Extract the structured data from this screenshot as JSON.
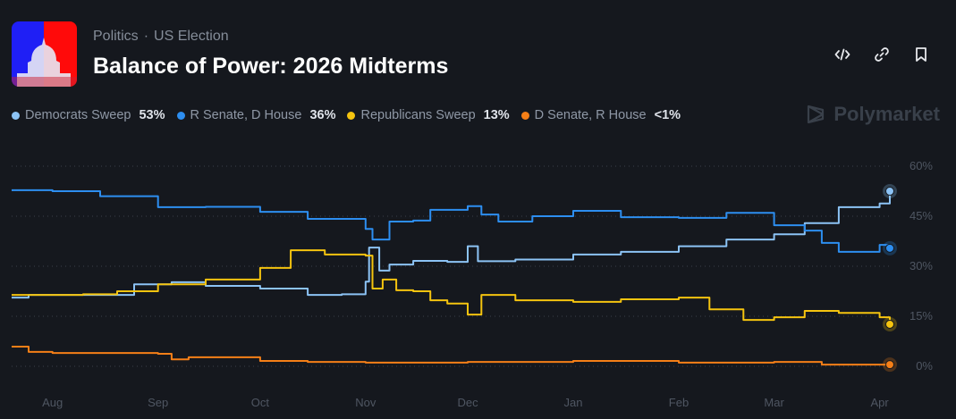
{
  "header": {
    "category": "Politics",
    "subcategory": "US Election",
    "separator": "·",
    "title": "Balance of Power: 2026 Midterms",
    "actions": [
      {
        "icon": "code-embed-icon"
      },
      {
        "icon": "link-icon"
      },
      {
        "icon": "bookmark-icon"
      }
    ]
  },
  "brand": {
    "name": "Polymarket"
  },
  "legend": [
    {
      "label": "Democrats Sweep",
      "value": "53%",
      "color": "#8cc3f5"
    },
    {
      "label": "R Senate, D House",
      "value": "36%",
      "color": "#2d8ef0"
    },
    {
      "label": "Republicans Sweep",
      "value": "13%",
      "color": "#f5c40f"
    },
    {
      "label": "D Senate, R House",
      "value": "<1%",
      "color": "#f57f17"
    }
  ],
  "chart_data": {
    "type": "line",
    "ylim": [
      0,
      60
    ],
    "y_ticks": [
      "60%",
      "45%",
      "30%",
      "15%",
      "0%"
    ],
    "y_tick_values": [
      60,
      45,
      30,
      15,
      0
    ],
    "x_ticks": [
      "Aug",
      "Sep",
      "Oct",
      "Nov",
      "Dec",
      "Jan",
      "Feb",
      "Mar",
      "Apr"
    ],
    "x_tick_dates": [
      "2025-08-01",
      "2025-09-01",
      "2025-10-01",
      "2025-11-01",
      "2025-12-01",
      "2026-01-01",
      "2026-02-01",
      "2026-03-01",
      "2026-04-01"
    ],
    "xlim": [
      "2025-07-20",
      "2026-04-04"
    ],
    "grid": "horizontal dotted",
    "legend_position": "top",
    "series": [
      {
        "name": "Democrats Sweep",
        "color": "#8cc3f5",
        "points": [
          [
            "2025-07-20",
            20.6
          ],
          [
            "2025-07-25",
            21.4
          ],
          [
            "2025-08-10",
            21.4
          ],
          [
            "2025-08-25",
            24.6
          ],
          [
            "2025-09-05",
            25.2
          ],
          [
            "2025-09-15",
            24.1
          ],
          [
            "2025-10-01",
            23.3
          ],
          [
            "2025-10-15",
            21.4
          ],
          [
            "2025-10-25",
            21.6
          ],
          [
            "2025-11-01",
            25.4
          ],
          [
            "2025-11-02",
            35.6
          ],
          [
            "2025-11-05",
            28.7
          ],
          [
            "2025-11-08",
            30.5
          ],
          [
            "2025-11-15",
            31.6
          ],
          [
            "2025-11-25",
            31.3
          ],
          [
            "2025-12-01",
            36.0
          ],
          [
            "2025-12-04",
            31.5
          ],
          [
            "2025-12-15",
            32.0
          ],
          [
            "2026-01-01",
            33.5
          ],
          [
            "2026-01-15",
            34.3
          ],
          [
            "2026-02-01",
            36.0
          ],
          [
            "2026-02-15",
            38.0
          ],
          [
            "2026-03-01",
            39.6
          ],
          [
            "2026-03-10",
            42.9
          ],
          [
            "2026-03-20",
            47.7
          ],
          [
            "2026-04-01",
            48.8
          ],
          [
            "2026-04-04",
            52.5
          ]
        ]
      },
      {
        "name": "R Senate, D House",
        "color": "#2d8ef0",
        "points": [
          [
            "2025-07-20",
            52.8
          ],
          [
            "2025-08-01",
            52.5
          ],
          [
            "2025-08-15",
            51.0
          ],
          [
            "2025-09-01",
            47.7
          ],
          [
            "2025-09-15",
            47.8
          ],
          [
            "2025-10-01",
            46.3
          ],
          [
            "2025-10-15",
            44.2
          ],
          [
            "2025-11-01",
            41.2
          ],
          [
            "2025-11-03",
            38.0
          ],
          [
            "2025-11-08",
            43.4
          ],
          [
            "2025-11-15",
            43.7
          ],
          [
            "2025-11-20",
            46.9
          ],
          [
            "2025-12-01",
            48.0
          ],
          [
            "2025-12-05",
            45.5
          ],
          [
            "2025-12-10",
            43.4
          ],
          [
            "2025-12-20",
            45.0
          ],
          [
            "2026-01-01",
            46.6
          ],
          [
            "2026-01-15",
            44.7
          ],
          [
            "2026-02-01",
            44.5
          ],
          [
            "2026-02-15",
            46.0
          ],
          [
            "2026-03-01",
            42.3
          ],
          [
            "2026-03-10",
            40.7
          ],
          [
            "2026-03-15",
            37.0
          ],
          [
            "2026-03-20",
            34.3
          ],
          [
            "2026-04-01",
            36.4
          ],
          [
            "2026-04-04",
            35.4
          ]
        ]
      },
      {
        "name": "Republicans Sweep",
        "color": "#f5c40f",
        "points": [
          [
            "2025-07-20",
            21.4
          ],
          [
            "2025-08-10",
            21.6
          ],
          [
            "2025-08-20",
            22.5
          ],
          [
            "2025-09-01",
            24.6
          ],
          [
            "2025-09-15",
            26.0
          ],
          [
            "2025-10-01",
            29.5
          ],
          [
            "2025-10-10",
            34.8
          ],
          [
            "2025-10-20",
            33.5
          ],
          [
            "2025-11-01",
            33.2
          ],
          [
            "2025-11-03",
            23.3
          ],
          [
            "2025-11-06",
            26.0
          ],
          [
            "2025-11-10",
            22.8
          ],
          [
            "2025-11-15",
            22.5
          ],
          [
            "2025-11-20",
            19.8
          ],
          [
            "2025-11-25",
            18.8
          ],
          [
            "2025-12-01",
            15.5
          ],
          [
            "2025-12-05",
            21.4
          ],
          [
            "2025-12-15",
            19.8
          ],
          [
            "2026-01-01",
            19.3
          ],
          [
            "2026-01-15",
            20.1
          ],
          [
            "2026-02-01",
            20.6
          ],
          [
            "2026-02-10",
            17.1
          ],
          [
            "2026-02-20",
            13.9
          ],
          [
            "2026-03-01",
            14.7
          ],
          [
            "2026-03-10",
            16.6
          ],
          [
            "2026-03-20",
            16.0
          ],
          [
            "2026-04-01",
            14.7
          ],
          [
            "2026-04-04",
            12.6
          ]
        ]
      },
      {
        "name": "D Senate, R House",
        "color": "#f57f17",
        "points": [
          [
            "2025-07-20",
            5.9
          ],
          [
            "2025-07-25",
            4.3
          ],
          [
            "2025-08-01",
            4.0
          ],
          [
            "2025-09-01",
            3.75
          ],
          [
            "2025-09-05",
            2.1
          ],
          [
            "2025-09-10",
            2.7
          ],
          [
            "2025-10-01",
            1.6
          ],
          [
            "2025-10-15",
            1.3
          ],
          [
            "2025-11-01",
            1.1
          ],
          [
            "2025-12-01",
            1.3
          ],
          [
            "2026-01-01",
            1.6
          ],
          [
            "2026-02-01",
            1.1
          ],
          [
            "2026-03-01",
            1.3
          ],
          [
            "2026-03-15",
            0.5
          ],
          [
            "2026-04-04",
            0.5
          ]
        ]
      }
    ]
  }
}
